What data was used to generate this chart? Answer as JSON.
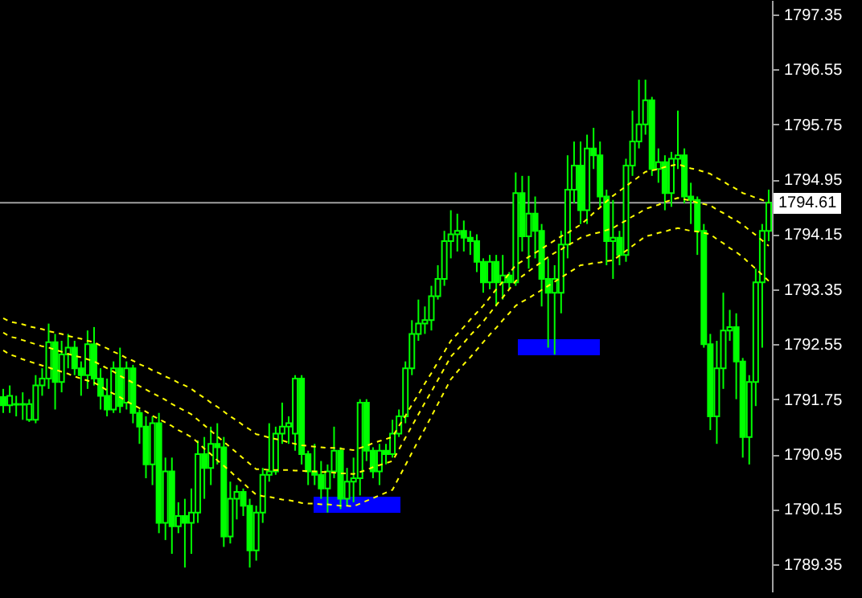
{
  "chart_data": {
    "type": "candlestick",
    "categories": [
      null,
      null,
      null,
      null,
      null,
      null,
      null,
      null,
      null,
      null,
      null,
      null,
      null,
      null,
      null,
      null,
      null,
      null,
      null,
      null,
      null,
      null,
      null,
      null,
      null,
      null,
      null,
      null,
      null,
      null,
      null,
      null,
      null,
      null,
      null,
      null,
      null,
      null,
      null,
      null,
      null,
      null,
      null,
      null,
      null,
      null,
      null,
      null,
      null,
      null,
      null,
      null,
      null,
      null,
      null,
      null,
      null,
      null,
      null,
      null,
      null,
      null,
      null,
      null,
      null,
      null,
      null,
      null,
      null,
      null,
      null,
      null,
      null,
      null,
      null,
      null,
      null,
      null,
      null,
      null,
      null,
      null,
      null,
      null,
      null,
      null,
      null,
      null,
      null,
      null,
      null,
      null,
      null,
      null,
      null,
      null,
      null,
      null,
      null,
      null,
      null,
      null,
      null,
      null,
      null,
      null,
      null,
      null,
      null,
      null,
      null,
      null,
      null,
      null,
      null,
      null,
      null,
      null,
      null
    ],
    "series": [
      {
        "type": "line",
        "color": "#ffff00",
        "values": [
          1792.93,
          1792.88,
          1792.86,
          1792.84,
          1792.81,
          1792.79,
          1792.77,
          1792.74,
          1792.72,
          1792.7,
          1792.67,
          1792.65,
          1792.63,
          1792.6,
          1792.58,
          1792.53,
          1792.49,
          1792.44,
          1792.4,
          1792.35,
          1792.31,
          1792.26,
          1792.22,
          1792.17,
          1792.13,
          1792.08,
          1792.04,
          1791.99,
          1791.95,
          1791.9,
          1791.83,
          1791.77,
          1791.7,
          1791.64,
          1791.57,
          1791.5,
          1791.44,
          1791.37,
          1791.31,
          1791.24,
          1791.22,
          1791.19,
          1791.17,
          1791.15,
          1791.12,
          1791.1,
          1791.08,
          1791.07,
          1791.06,
          1791.05,
          1791.04,
          1791.04,
          1791.03,
          1791.02,
          1791.01,
          1791.04,
          1791.07,
          1791.11,
          1791.14,
          1791.17,
          1791.2,
          1791.36,
          1791.51,
          1791.67,
          1791.82,
          1791.98,
          1792.13,
          1792.29,
          1792.44,
          1792.6,
          1792.7,
          1792.8,
          1792.91,
          1793.01,
          1793.11,
          1793.23,
          1793.35,
          1793.46,
          1793.58,
          1793.7,
          1793.76,
          1793.82,
          1793.88,
          1793.94,
          1794.0,
          1794.06,
          1794.12,
          1794.17,
          1794.23,
          1794.29,
          1794.37,
          1794.46,
          1794.54,
          1794.63,
          1794.71,
          1794.78,
          1794.85,
          1794.92,
          1794.99,
          1795.06,
          1795.08,
          1795.1,
          1795.13,
          1795.15,
          1795.17,
          1795.14,
          1795.11,
          1795.09,
          1795.06,
          1795.03,
          1794.97,
          1794.92,
          1794.86,
          1794.81,
          1794.75,
          1794.72,
          1794.68,
          1794.65,
          1794.61
        ]
      },
      {
        "type": "line",
        "color": "#ffff00",
        "values": [
          1792.72,
          1792.66,
          1792.64,
          1792.61,
          1792.58,
          1792.55,
          1792.52,
          1792.5,
          1792.47,
          1792.44,
          1792.41,
          1792.38,
          1792.36,
          1792.33,
          1792.3,
          1792.25,
          1792.2,
          1792.15,
          1792.09,
          1792.04,
          1791.99,
          1791.94,
          1791.89,
          1791.84,
          1791.79,
          1791.74,
          1791.68,
          1791.63,
          1791.58,
          1791.53,
          1791.45,
          1791.37,
          1791.29,
          1791.21,
          1791.13,
          1791.05,
          1790.97,
          1790.89,
          1790.81,
          1790.73,
          1790.73,
          1790.72,
          1790.72,
          1790.72,
          1790.72,
          1790.71,
          1790.71,
          1790.7,
          1790.7,
          1790.69,
          1790.69,
          1790.68,
          1790.67,
          1790.67,
          1790.66,
          1790.69,
          1790.72,
          1790.76,
          1790.79,
          1790.82,
          1790.85,
          1791.02,
          1791.19,
          1791.36,
          1791.53,
          1791.7,
          1791.86,
          1792.03,
          1792.2,
          1792.37,
          1792.47,
          1792.57,
          1792.68,
          1792.78,
          1792.88,
          1793.0,
          1793.12,
          1793.23,
          1793.35,
          1793.47,
          1793.54,
          1793.61,
          1793.68,
          1793.75,
          1793.82,
          1793.88,
          1793.93,
          1793.99,
          1794.04,
          1794.1,
          1794.13,
          1794.16,
          1794.18,
          1794.21,
          1794.24,
          1794.3,
          1794.35,
          1794.41,
          1794.46,
          1794.52,
          1794.55,
          1794.58,
          1794.62,
          1794.65,
          1794.68,
          1794.66,
          1794.64,
          1794.61,
          1794.59,
          1794.57,
          1794.51,
          1794.46,
          1794.4,
          1794.35,
          1794.29,
          1794.21,
          1794.14,
          1794.06,
          1793.98
        ]
      },
      {
        "type": "line",
        "color": "#ffff00",
        "values": [
          1792.46,
          1792.4,
          1792.37,
          1792.33,
          1792.3,
          1792.27,
          1792.24,
          1792.21,
          1792.18,
          1792.15,
          1792.12,
          1792.08,
          1792.05,
          1792.02,
          1791.99,
          1791.94,
          1791.88,
          1791.83,
          1791.78,
          1791.72,
          1791.67,
          1791.62,
          1791.57,
          1791.51,
          1791.46,
          1791.41,
          1791.36,
          1791.3,
          1791.25,
          1791.2,
          1791.12,
          1791.03,
          1790.95,
          1790.86,
          1790.78,
          1790.7,
          1790.61,
          1790.53,
          1790.44,
          1790.36,
          1790.34,
          1790.33,
          1790.31,
          1790.29,
          1790.28,
          1790.26,
          1790.24,
          1790.23,
          1790.23,
          1790.22,
          1790.22,
          1790.21,
          1790.2,
          1790.2,
          1790.19,
          1790.23,
          1790.27,
          1790.31,
          1790.35,
          1790.39,
          1790.43,
          1790.61,
          1790.79,
          1790.97,
          1791.15,
          1791.32,
          1791.5,
          1791.68,
          1791.86,
          1792.04,
          1792.15,
          1792.26,
          1792.36,
          1792.47,
          1792.58,
          1792.69,
          1792.79,
          1792.9,
          1793.0,
          1793.11,
          1793.17,
          1793.22,
          1793.28,
          1793.34,
          1793.4,
          1793.46,
          1793.52,
          1793.58,
          1793.64,
          1793.7,
          1793.71,
          1793.73,
          1793.74,
          1793.76,
          1793.77,
          1793.84,
          1793.91,
          1793.98,
          1794.05,
          1794.12,
          1794.14,
          1794.17,
          1794.19,
          1794.22,
          1794.24,
          1794.22,
          1794.2,
          1794.19,
          1794.17,
          1794.15,
          1794.08,
          1794.02,
          1793.95,
          1793.89,
          1793.82,
          1793.73,
          1793.65,
          1793.56,
          1793.47
        ]
      },
      {
        "type": "candlestick",
        "color": "#00ff00",
        "ohlc": [
          [
            1791.78,
            1791.9,
            1791.55,
            1791.66
          ],
          [
            1791.66,
            1791.95,
            1791.55,
            1791.8
          ],
          [
            1791.68,
            1791.8,
            1791.5,
            1791.67
          ],
          [
            1791.67,
            1791.85,
            1791.45,
            1791.68
          ],
          [
            1791.45,
            1791.75,
            1791.42,
            1791.68
          ],
          [
            1791.45,
            1792.1,
            1791.4,
            1791.95
          ],
          [
            1791.95,
            1792.2,
            1791.8,
            1792.05
          ],
          [
            1792.05,
            1792.85,
            1791.9,
            1792.58
          ],
          [
            1792.58,
            1792.7,
            1791.6,
            1792.0
          ],
          [
            1792.0,
            1792.6,
            1791.85,
            1792.4
          ],
          [
            1792.4,
            1792.7,
            1792.2,
            1792.5
          ],
          [
            1792.5,
            1792.6,
            1792.1,
            1792.2
          ],
          [
            1792.2,
            1792.3,
            1791.8,
            1792.1
          ],
          [
            1792.1,
            1792.75,
            1791.9,
            1792.55
          ],
          [
            1792.55,
            1792.8,
            1791.95,
            1792.05
          ],
          [
            1792.05,
            1792.2,
            1791.6,
            1791.8
          ],
          [
            1791.8,
            1792.05,
            1791.5,
            1791.6
          ],
          [
            1791.6,
            1792.3,
            1791.55,
            1792.2
          ],
          [
            1792.2,
            1792.5,
            1791.55,
            1791.65
          ],
          [
            1791.7,
            1792.3,
            1791.6,
            1792.2
          ],
          [
            1792.2,
            1792.25,
            1791.4,
            1791.55
          ],
          [
            1791.55,
            1791.6,
            1791.1,
            1791.35
          ],
          [
            1791.35,
            1791.5,
            1790.6,
            1790.8
          ],
          [
            1790.8,
            1791.5,
            1790.5,
            1791.4
          ],
          [
            1791.4,
            1791.55,
            1789.8,
            1789.95
          ],
          [
            1789.95,
            1790.9,
            1789.7,
            1790.7
          ],
          [
            1790.7,
            1790.9,
            1789.5,
            1789.9
          ],
          [
            1789.9,
            1790.25,
            1789.8,
            1790.05
          ],
          [
            1790.05,
            1790.3,
            1789.3,
            1789.95
          ],
          [
            1789.95,
            1790.45,
            1789.5,
            1790.1
          ],
          [
            1790.1,
            1791.15,
            1789.95,
            1790.95
          ],
          [
            1790.95,
            1791.2,
            1790.3,
            1790.75
          ],
          [
            1790.75,
            1791.35,
            1790.5,
            1791.1
          ],
          [
            1791.1,
            1791.4,
            1790.8,
            1791.05
          ],
          [
            1791.05,
            1791.2,
            1789.6,
            1789.75
          ],
          [
            1789.75,
            1790.55,
            1789.65,
            1790.3
          ],
          [
            1790.3,
            1790.5,
            1790.0,
            1790.4
          ],
          [
            1790.4,
            1790.45,
            1790.05,
            1790.2
          ],
          [
            1790.2,
            1790.3,
            1789.3,
            1789.55
          ],
          [
            1789.55,
            1790.2,
            1789.4,
            1790.1
          ],
          [
            1790.1,
            1790.75,
            1789.95,
            1790.65
          ],
          [
            1790.65,
            1791.4,
            1790.55,
            1790.7
          ],
          [
            1790.7,
            1791.35,
            1790.65,
            1791.25
          ],
          [
            1791.25,
            1791.7,
            1791.1,
            1791.35
          ],
          [
            1791.35,
            1791.5,
            1791.1,
            1791.4
          ],
          [
            1791.25,
            1792.1,
            1791.0,
            1792.05
          ],
          [
            1792.05,
            1792.1,
            1790.8,
            1790.95
          ],
          [
            1790.95,
            1791.0,
            1790.5,
            1790.7
          ],
          [
            1790.7,
            1791.1,
            1790.5,
            1790.65
          ],
          [
            1790.65,
            1790.85,
            1790.3,
            1790.45
          ],
          [
            1790.45,
            1790.8,
            1790.1,
            1790.7
          ],
          [
            1790.7,
            1791.35,
            1790.6,
            1791.0
          ],
          [
            1791.0,
            1791.05,
            1790.15,
            1790.3
          ],
          [
            1790.3,
            1790.75,
            1790.2,
            1790.55
          ],
          [
            1790.55,
            1790.9,
            1790.25,
            1790.6
          ],
          [
            1790.6,
            1791.75,
            1790.35,
            1791.7
          ],
          [
            1791.7,
            1791.75,
            1790.85,
            1791.0
          ],
          [
            1791.0,
            1791.05,
            1790.6,
            1790.7
          ],
          [
            1790.7,
            1791.1,
            1790.5,
            1791.0
          ],
          [
            1791.0,
            1791.1,
            1790.8,
            1790.95
          ],
          [
            1790.95,
            1791.45,
            1790.9,
            1791.25
          ],
          [
            1791.25,
            1791.6,
            1791.2,
            1791.5
          ],
          [
            1791.5,
            1792.3,
            1791.4,
            1792.2
          ],
          [
            1792.2,
            1792.9,
            1792.1,
            1792.7
          ],
          [
            1792.7,
            1793.2,
            1792.6,
            1792.85
          ],
          [
            1792.85,
            1793.1,
            1792.7,
            1792.9
          ],
          [
            1792.9,
            1793.4,
            1792.75,
            1793.25
          ],
          [
            1793.25,
            1793.7,
            1793.2,
            1793.5
          ],
          [
            1793.5,
            1794.2,
            1793.4,
            1794.05
          ],
          [
            1794.05,
            1794.5,
            1793.8,
            1794.15
          ],
          [
            1794.15,
            1794.45,
            1793.9,
            1794.2
          ],
          [
            1794.2,
            1794.35,
            1793.9,
            1794.1
          ],
          [
            1794.1,
            1794.2,
            1793.85,
            1794.05
          ],
          [
            1794.05,
            1794.15,
            1793.6,
            1793.75
          ],
          [
            1793.75,
            1793.8,
            1793.3,
            1793.45
          ],
          [
            1793.45,
            1793.85,
            1793.35,
            1793.75
          ],
          [
            1793.75,
            1793.85,
            1793.1,
            1793.45
          ],
          [
            1793.45,
            1793.85,
            1793.2,
            1793.55
          ],
          [
            1793.55,
            1793.6,
            1793.35,
            1793.45
          ],
          [
            1793.45,
            1795.05,
            1793.4,
            1794.75
          ],
          [
            1794.75,
            1795.0,
            1793.9,
            1794.12
          ],
          [
            1794.12,
            1795.0,
            1793.65,
            1794.45
          ],
          [
            1794.45,
            1794.7,
            1793.8,
            1794.2
          ],
          [
            1794.2,
            1794.3,
            1793.1,
            1793.5
          ],
          [
            1793.5,
            1793.8,
            1792.5,
            1793.3
          ],
          [
            1793.3,
            1793.7,
            1792.4,
            1793.5
          ],
          [
            1793.3,
            1794.2,
            1793.0,
            1794.0
          ],
          [
            1794.0,
            1795.3,
            1793.8,
            1794.8
          ],
          [
            1794.8,
            1795.5,
            1794.6,
            1795.15
          ],
          [
            1795.15,
            1795.5,
            1794.3,
            1794.5
          ],
          [
            1794.5,
            1795.6,
            1794.3,
            1795.4
          ],
          [
            1795.4,
            1795.7,
            1795.1,
            1795.3
          ],
          [
            1795.3,
            1795.5,
            1794.55,
            1794.7
          ],
          [
            1794.7,
            1794.8,
            1793.7,
            1794.05
          ],
          [
            1794.05,
            1794.65,
            1793.5,
            1794.1
          ],
          [
            1794.1,
            1794.2,
            1793.7,
            1793.85
          ],
          [
            1793.85,
            1795.25,
            1793.75,
            1795.15
          ],
          [
            1795.15,
            1795.95,
            1795.0,
            1795.5
          ],
          [
            1795.5,
            1796.4,
            1795.4,
            1795.75
          ],
          [
            1795.75,
            1796.4,
            1795.6,
            1796.1
          ],
          [
            1796.1,
            1796.15,
            1795.0,
            1795.1
          ],
          [
            1795.1,
            1795.4,
            1794.9,
            1795.2
          ],
          [
            1795.2,
            1795.3,
            1794.5,
            1794.75
          ],
          [
            1794.75,
            1795.35,
            1794.55,
            1795.25
          ],
          [
            1795.25,
            1795.95,
            1795.1,
            1795.3
          ],
          [
            1795.3,
            1795.4,
            1794.6,
            1794.7
          ],
          [
            1794.7,
            1794.9,
            1794.3,
            1794.65
          ],
          [
            1794.65,
            1794.7,
            1793.85,
            1794.2
          ],
          [
            1794.2,
            1794.3,
            1792.5,
            1792.55
          ],
          [
            1792.55,
            1792.7,
            1791.3,
            1791.5
          ],
          [
            1791.5,
            1792.6,
            1791.1,
            1792.2
          ],
          [
            1792.2,
            1793.3,
            1791.9,
            1792.75
          ],
          [
            1792.75,
            1793.05,
            1792.6,
            1792.8
          ],
          [
            1792.8,
            1793.0,
            1791.75,
            1792.3
          ],
          [
            1792.3,
            1792.35,
            1790.9,
            1791.2
          ],
          [
            1791.2,
            1792.1,
            1790.8,
            1792.0
          ],
          [
            1792.0,
            1793.65,
            1791.65,
            1793.45
          ],
          [
            1793.45,
            1794.3,
            1792.5,
            1794.2
          ],
          [
            1794.2,
            1794.8,
            1794.05,
            1794.61
          ]
        ]
      }
    ],
    "ylim": [
      1788.95,
      1797.56
    ],
    "yticks": [
      1789.35,
      1790.15,
      1790.95,
      1791.75,
      1792.55,
      1793.35,
      1794.15,
      1794.95,
      1795.75,
      1796.55,
      1797.35
    ],
    "ref_lines": [
      {
        "axis": "y",
        "value": 1794.61,
        "label": "1794.61",
        "color": "#a0a0a0"
      }
    ],
    "line_style": "dashed",
    "tick_labels": "y"
  }
}
